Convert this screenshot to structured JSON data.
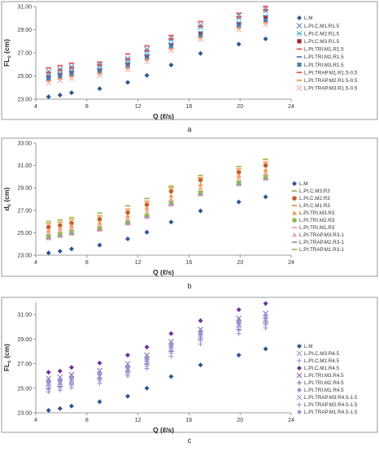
{
  "colors": {
    "LM": "#2f5597",
    "darkred": "#a0282c",
    "red": "#e85050",
    "steel": "#4f81bd",
    "lightblue": "#4bacc6",
    "purple": "#7030a0",
    "green": "#8cb84f",
    "orange": "#f79646",
    "brown": "#c0602a",
    "salmon": "#f4a6a0",
    "olive": "#9bbb59",
    "lavender": "#9a94d0",
    "violet": "#8064a2"
  },
  "chart_data": [
    {
      "panel": "a",
      "type": "scatter",
      "caption": "a",
      "xlabel": "Q (ℓ/s)",
      "ylabel": "FL",
      "ylabel_sub": "c",
      "ylabel_unit": "(cm)",
      "xlim": [
        4,
        24
      ],
      "ylim": [
        23.0,
        31.0
      ],
      "xticks": [
        4,
        8,
        12,
        16,
        20,
        24
      ],
      "yticks": [
        23.0,
        25.0,
        27.0,
        29.0,
        31.0
      ],
      "ytick_labels": [
        "23.00",
        "25.00",
        "27.00",
        "29.00",
        "31.00"
      ],
      "x": [
        5.0,
        5.9,
        6.8,
        9.0,
        11.2,
        12.7,
        14.6,
        16.9,
        19.9,
        22.0
      ],
      "series": [
        {
          "name": "L.M",
          "marker": "diamond",
          "color": "LM",
          "values": [
            23.2,
            23.35,
            23.55,
            23.9,
            24.45,
            25.05,
            25.95,
            26.95,
            27.75,
            28.2
          ]
        },
        {
          "name": "L.Pt.C.M1.R1.5",
          "marker": "x",
          "color": "steel",
          "values": [
            25.4,
            25.6,
            25.8,
            26.0,
            26.5,
            27.3,
            28.3,
            29.4,
            30.3,
            30.8
          ]
        },
        {
          "name": "L.Pt.C.M2.R1.5",
          "marker": "xbar",
          "color": "lightblue",
          "values": [
            25.2,
            25.45,
            25.65,
            25.85,
            26.35,
            27.1,
            28.1,
            29.2,
            30.0,
            30.6
          ]
        },
        {
          "name": "L.Pt.C.M3.R1.5",
          "marker": "square",
          "color": "darkred",
          "values": [
            24.9,
            25.1,
            25.3,
            25.5,
            26.0,
            26.7,
            27.65,
            28.65,
            29.5,
            30.0
          ]
        },
        {
          "name": "L.Pt.TRI.M1.R1.5",
          "marker": "dash",
          "color": "red",
          "values": [
            25.7,
            25.9,
            26.1,
            26.2,
            26.9,
            27.6,
            28.5,
            29.7,
            30.4,
            31.0
          ]
        },
        {
          "name": "L.Pt.TRI.M2.R1.5",
          "marker": "dash",
          "color": "steel",
          "values": [
            25.0,
            25.2,
            25.4,
            25.6,
            26.1,
            26.8,
            27.8,
            28.8,
            29.6,
            30.2
          ]
        },
        {
          "name": "L.Pt.TRI.M3.R1.5",
          "marker": "square",
          "color": "steel",
          "values": [
            24.7,
            24.9,
            25.1,
            25.3,
            25.8,
            26.5,
            27.5,
            28.45,
            29.3,
            29.8
          ]
        },
        {
          "name": "L.Pt.TRAP.M1.R1.5-0.5",
          "marker": "dash",
          "color": "red",
          "values": [
            25.3,
            25.5,
            25.7,
            25.95,
            26.45,
            27.2,
            28.2,
            29.3,
            30.1,
            30.7
          ]
        },
        {
          "name": "L.Pt.TRAP.M2.R1.5-0.5",
          "marker": "dash",
          "color": "orange",
          "values": [
            24.55,
            24.75,
            24.95,
            25.2,
            25.7,
            26.4,
            27.35,
            28.3,
            29.15,
            29.6
          ]
        },
        {
          "name": "L.Pt.TRAP.M3.R1.5-0.5",
          "marker": "x",
          "color": "salmon",
          "values": [
            24.4,
            24.6,
            24.8,
            25.05,
            25.55,
            26.25,
            27.2,
            28.15,
            29.0,
            29.45
          ]
        }
      ]
    },
    {
      "panel": "b",
      "type": "scatter",
      "caption": "b",
      "xlabel": "Q (ℓ/s)",
      "ylabel": "d",
      "ylabel_sub": "c",
      "ylabel_unit": "(cm)",
      "xlim": [
        4,
        24
      ],
      "ylim": [
        23.0,
        33.0
      ],
      "xticks": [
        4,
        8,
        12,
        16,
        20,
        24
      ],
      "yticks": [
        23.0,
        25.0,
        27.0,
        29.0,
        31.0,
        33.0
      ],
      "ytick_labels": [
        "23.00",
        "25.00",
        "27.00",
        "29.00",
        "31.00",
        "33.00"
      ],
      "x": [
        5.0,
        5.9,
        6.8,
        9.0,
        11.2,
        12.7,
        14.6,
        16.9,
        19.9,
        22.0
      ],
      "series": [
        {
          "name": "L.M",
          "marker": "diamond",
          "color": "LM",
          "values": [
            23.2,
            23.35,
            23.55,
            23.9,
            24.45,
            25.05,
            25.95,
            26.95,
            27.75,
            28.2
          ]
        },
        {
          "name": "L.Pt.C.M3.R3",
          "marker": "dash",
          "color": "olive",
          "values": [
            24.8,
            25.0,
            25.2,
            25.5,
            26.0,
            26.6,
            27.8,
            28.7,
            29.6,
            30.1
          ]
        },
        {
          "name": "L.Pt.C.M2.R3",
          "marker": "circle",
          "color": "brown",
          "values": [
            25.5,
            25.65,
            25.85,
            26.2,
            26.8,
            27.5,
            28.7,
            29.7,
            30.4,
            31.0
          ]
        },
        {
          "name": "L.Pt.C.M1.R3",
          "marker": "dash",
          "color": "orange",
          "values": [
            25.8,
            25.95,
            26.15,
            26.5,
            27.1,
            27.8,
            29.0,
            29.9,
            30.7,
            31.3
          ]
        },
        {
          "name": "L.Pt.TRI.M3.R3",
          "marker": "triangle",
          "color": "orange",
          "values": [
            25.2,
            25.4,
            25.6,
            25.9,
            26.5,
            27.2,
            28.3,
            29.3,
            30.1,
            30.6
          ]
        },
        {
          "name": "L.Pt.TRI.M2.R3",
          "marker": "circle",
          "color": "green",
          "values": [
            24.6,
            24.8,
            25.0,
            25.35,
            25.9,
            26.5,
            27.6,
            28.5,
            29.4,
            29.9
          ]
        },
        {
          "name": "L.Pt.TRI.M1.R3",
          "marker": "dash",
          "color": "salmon",
          "values": [
            24.4,
            24.6,
            24.8,
            25.15,
            25.7,
            26.3,
            27.4,
            28.3,
            29.2,
            29.7
          ]
        },
        {
          "name": "L.Pt.TRAP.M3.R3-1",
          "marker": "triangle",
          "color": "salmon",
          "values": [
            25.0,
            25.2,
            25.4,
            25.7,
            26.25,
            26.9,
            28.0,
            29.0,
            29.9,
            30.35
          ]
        },
        {
          "name": "L.Pt.TRAP.M2.R3-1",
          "marker": "dash",
          "color": "lavender",
          "values": [
            24.5,
            24.7,
            24.9,
            25.25,
            25.8,
            26.4,
            27.5,
            28.4,
            29.3,
            29.8
          ]
        },
        {
          "name": "L.Pt.TRAP.M1.R3-1",
          "marker": "dash",
          "color": "olive",
          "values": [
            26.0,
            26.15,
            26.35,
            26.75,
            27.4,
            28.05,
            29.15,
            30.1,
            30.9,
            31.55
          ]
        }
      ]
    },
    {
      "panel": "c",
      "type": "scatter",
      "caption": "c",
      "xlabel": "Q (ℓ/s)",
      "ylabel": "FL",
      "ylabel_sub": "c",
      "ylabel_unit": "(cm)",
      "xlim": [
        4,
        24
      ],
      "ylim": [
        23.0,
        32.0
      ],
      "xticks": [
        4,
        8,
        12,
        16,
        20,
        24
      ],
      "yticks": [
        23.0,
        25.0,
        27.0,
        29.0,
        31.0
      ],
      "ytick_labels": [
        "23.00",
        "25.00",
        "27.00",
        "29.00",
        "31.00"
      ],
      "x": [
        5.0,
        5.9,
        6.8,
        9.0,
        11.2,
        12.7,
        14.6,
        16.9,
        19.9,
        22.0
      ],
      "series": [
        {
          "name": "L.M",
          "marker": "diamond",
          "color": "LM",
          "values": [
            23.2,
            23.35,
            23.55,
            23.9,
            24.35,
            25.0,
            25.95,
            26.9,
            27.7,
            28.2
          ]
        },
        {
          "name": "L.Pt.C.M3.R4.5",
          "marker": "x",
          "color": "lavender",
          "values": [
            25.4,
            25.5,
            25.7,
            26.0,
            26.6,
            27.3,
            28.4,
            29.4,
            30.2,
            30.6
          ]
        },
        {
          "name": "L.Pt.C.M2.R4.5",
          "marker": "plus",
          "color": "lavender",
          "values": [
            24.7,
            24.85,
            25.05,
            25.4,
            26.0,
            26.6,
            27.6,
            28.6,
            29.45,
            29.9
          ]
        },
        {
          "name": "L.Pt.C.M1.R4.5",
          "marker": "diamond",
          "color": "purple",
          "values": [
            26.3,
            26.4,
            26.7,
            27.05,
            27.7,
            28.35,
            29.45,
            30.5,
            31.4,
            31.9
          ]
        },
        {
          "name": "L.Pt.TRI.M3.R4.5",
          "marker": "x",
          "color": "violet",
          "values": [
            25.8,
            25.9,
            26.1,
            26.45,
            27.0,
            27.7,
            28.8,
            29.8,
            30.7,
            31.1
          ]
        },
        {
          "name": "L.Pt.TRI.M2.R4.5",
          "marker": "plus",
          "color": "violet",
          "values": [
            25.0,
            25.15,
            25.35,
            25.75,
            26.3,
            26.95,
            28.0,
            29.0,
            29.8,
            30.3
          ]
        },
        {
          "name": "L.Pt.TRI.M1.R4.5",
          "marker": "diamond",
          "color": "lavender",
          "values": [
            25.6,
            25.75,
            25.9,
            26.3,
            26.85,
            27.5,
            28.6,
            29.6,
            30.45,
            30.95
          ]
        },
        {
          "name": "L.Pt.TRAP.M3.R4.5-1.5",
          "marker": "x",
          "color": "lavender",
          "values": [
            25.3,
            25.4,
            25.6,
            25.95,
            26.5,
            27.15,
            28.25,
            29.25,
            30.1,
            30.55
          ]
        },
        {
          "name": "L.Pt.TRAP.M2.R4.5-1.5",
          "marker": "plus",
          "color": "lavender",
          "values": [
            24.9,
            25.05,
            25.25,
            25.6,
            26.15,
            26.8,
            27.85,
            28.85,
            29.7,
            30.15
          ]
        },
        {
          "name": "L.Pt.TRAP.M1.R4.5-1.5",
          "marker": "diamond",
          "color": "lavender",
          "values": [
            25.5,
            25.6,
            25.8,
            26.15,
            26.7,
            27.35,
            28.4,
            29.4,
            30.25,
            30.7
          ]
        }
      ]
    }
  ]
}
